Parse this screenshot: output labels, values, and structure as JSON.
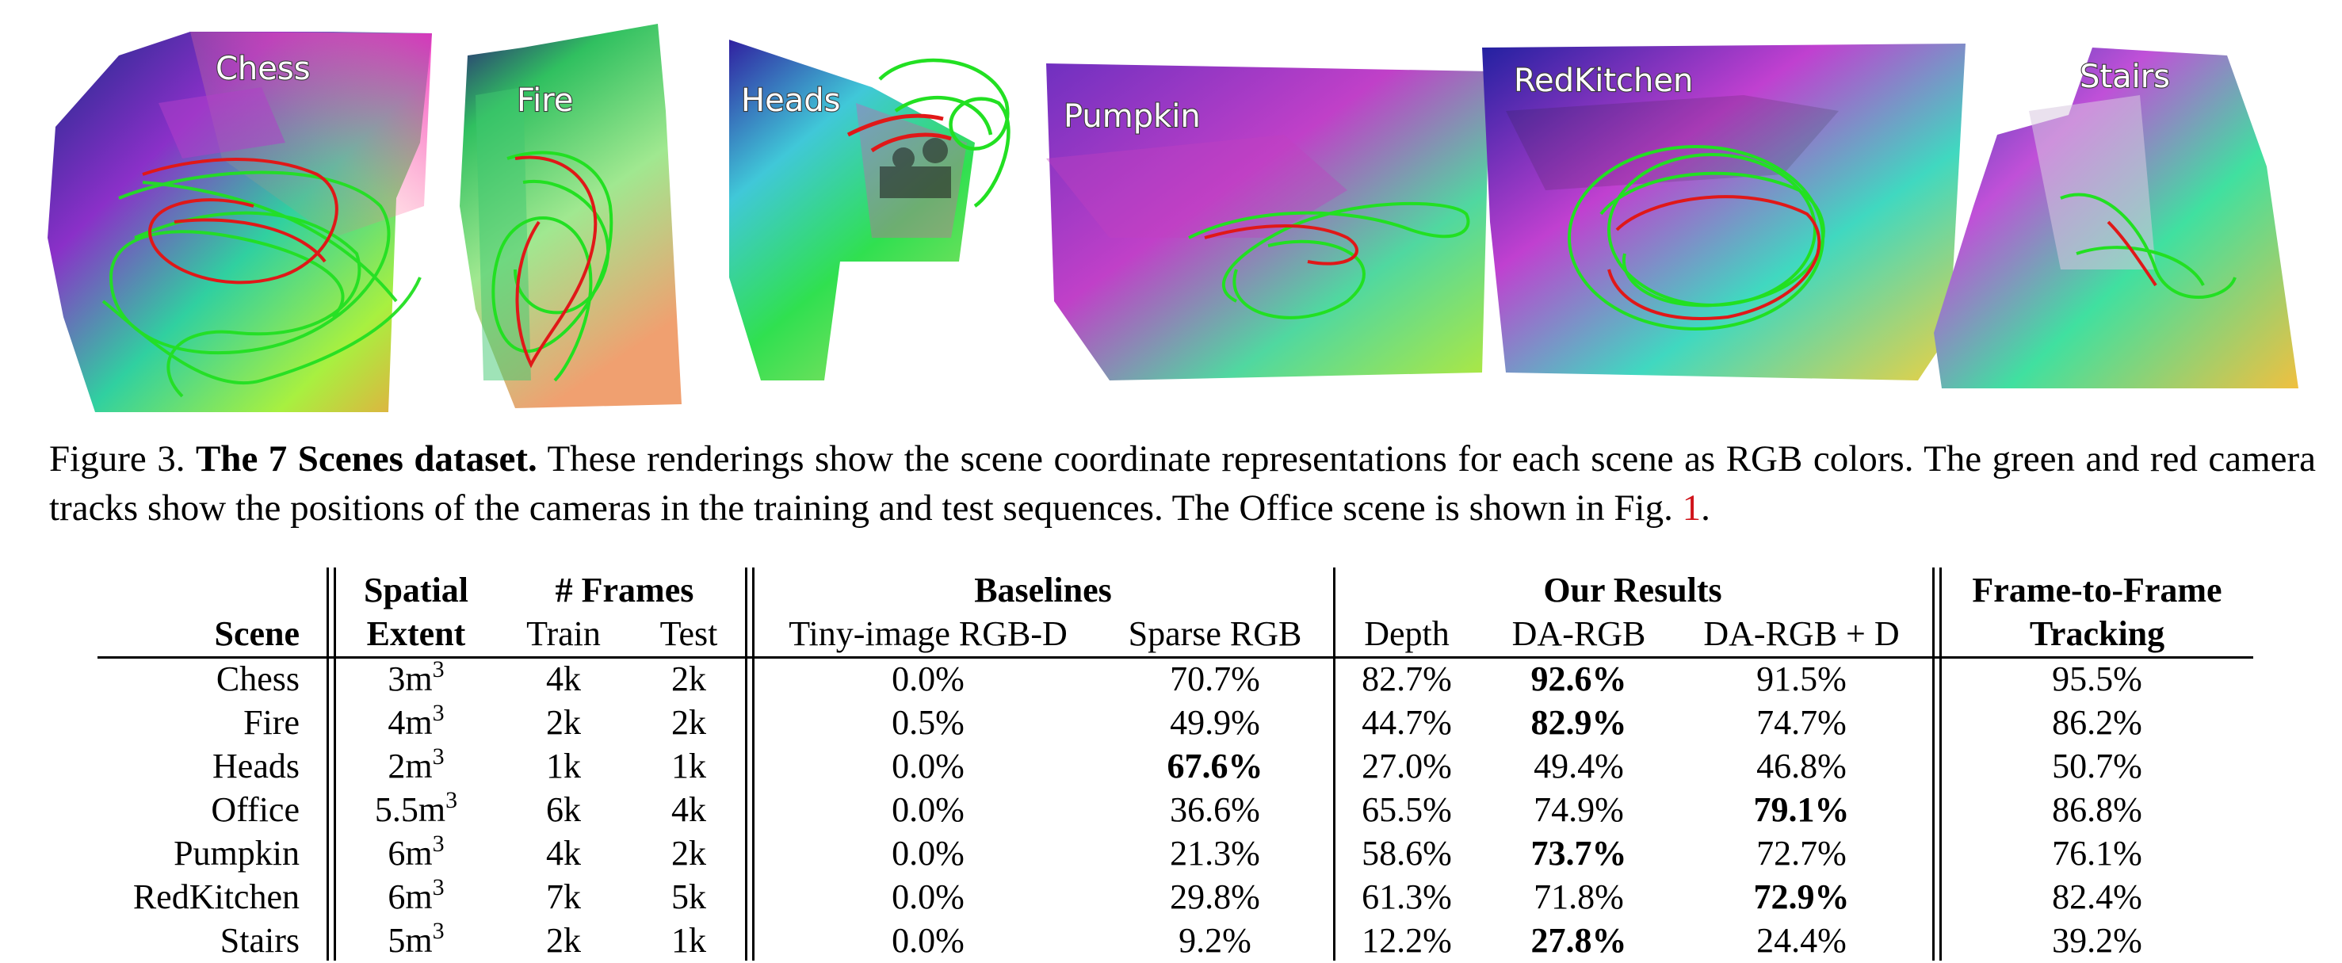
{
  "figure": {
    "scenes": [
      {
        "label": "Chess"
      },
      {
        "label": "Fire"
      },
      {
        "label": "Heads"
      },
      {
        "label": "Pumpkin"
      },
      {
        "label": "RedKitchen"
      },
      {
        "label": "Stairs"
      }
    ],
    "track_colors": {
      "train": "#22e022",
      "test": "#e01818"
    }
  },
  "caption": {
    "prefix": "Figure 3.",
    "title": "The 7 Scenes dataset.",
    "body": "These renderings show the scene coordinate representations for each scene as RGB colors. The green and red camera tracks show the positions of the cameras in the training and test sequences. The Office scene is shown in Fig.",
    "fig_ref": "1",
    "suffix": "."
  },
  "table": {
    "headers": {
      "scene": "Scene",
      "spatial_top": "Spatial",
      "spatial_bottom": "Extent",
      "frames_top": "# Frames",
      "train": "Train",
      "test": "Test",
      "baselines": "Baselines",
      "tiny": "Tiny-image RGB-D",
      "sparse": "Sparse RGB",
      "our_results": "Our Results",
      "depth": "Depth",
      "da_rgb": "DA-RGB",
      "da_rgb_d": "DA-RGB + D",
      "f2f_top": "Frame-to-Frame",
      "f2f_bottom": "Tracking"
    },
    "extent_unit": "m",
    "extent_exp": "3",
    "rows": [
      {
        "scene": "Chess",
        "extent": "3",
        "train": "4k",
        "test": "2k",
        "tiny": "0.0%",
        "sparse": "70.7%",
        "depth": "82.7%",
        "da_rgb": "92.6%",
        "da_rgb_d": "91.5%",
        "f2f": "95.5%",
        "bold": "da_rgb"
      },
      {
        "scene": "Fire",
        "extent": "4",
        "train": "2k",
        "test": "2k",
        "tiny": "0.5%",
        "sparse": "49.9%",
        "depth": "44.7%",
        "da_rgb": "82.9%",
        "da_rgb_d": "74.7%",
        "f2f": "86.2%",
        "bold": "da_rgb"
      },
      {
        "scene": "Heads",
        "extent": "2",
        "train": "1k",
        "test": "1k",
        "tiny": "0.0%",
        "sparse": "67.6%",
        "depth": "27.0%",
        "da_rgb": "49.4%",
        "da_rgb_d": "46.8%",
        "f2f": "50.7%",
        "bold": "sparse"
      },
      {
        "scene": "Office",
        "extent": "5.5",
        "train": "6k",
        "test": "4k",
        "tiny": "0.0%",
        "sparse": "36.6%",
        "depth": "65.5%",
        "da_rgb": "74.9%",
        "da_rgb_d": "79.1%",
        "f2f": "86.8%",
        "bold": "da_rgb_d"
      },
      {
        "scene": "Pumpkin",
        "extent": "6",
        "train": "4k",
        "test": "2k",
        "tiny": "0.0%",
        "sparse": "21.3%",
        "depth": "58.6%",
        "da_rgb": "73.7%",
        "da_rgb_d": "72.7%",
        "f2f": "76.1%",
        "bold": "da_rgb"
      },
      {
        "scene": "RedKitchen",
        "extent": "6",
        "train": "7k",
        "test": "5k",
        "tiny": "0.0%",
        "sparse": "29.8%",
        "depth": "61.3%",
        "da_rgb": "71.8%",
        "da_rgb_d": "72.9%",
        "f2f": "82.4%",
        "bold": "da_rgb_d"
      },
      {
        "scene": "Stairs",
        "extent": "5",
        "train": "2k",
        "test": "1k",
        "tiny": "0.0%",
        "sparse": "9.2%",
        "depth": "12.2%",
        "da_rgb": "27.8%",
        "da_rgb_d": "24.4%",
        "f2f": "39.2%",
        "bold": "da_rgb"
      }
    ]
  }
}
